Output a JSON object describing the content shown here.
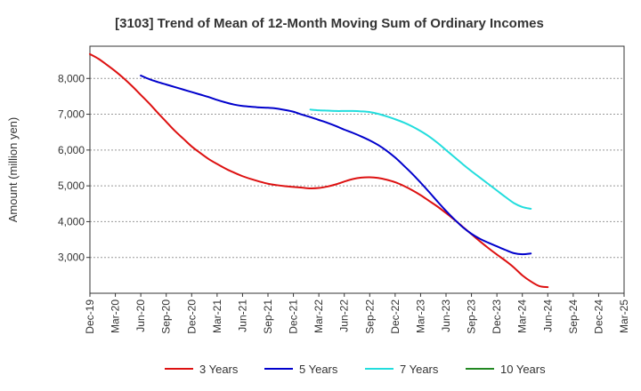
{
  "chart_data": {
    "type": "line",
    "title": "[3103]  Trend of Mean of 12-Month Moving Sum of Ordinary Incomes",
    "xlabel": "",
    "ylabel": "Amount (million yen)",
    "x_ticks": [
      "Dec-19",
      "Mar-20",
      "Jun-20",
      "Sep-20",
      "Dec-20",
      "Mar-21",
      "Jun-21",
      "Sep-21",
      "Dec-21",
      "Mar-22",
      "Jun-22",
      "Sep-22",
      "Dec-22",
      "Mar-23",
      "Jun-23",
      "Sep-23",
      "Dec-23",
      "Mar-24",
      "Jun-24",
      "Sep-24",
      "Dec-24",
      "Mar-25"
    ],
    "y_ticks": [
      3000,
      4000,
      5000,
      6000,
      7000,
      8000
    ],
    "y_tick_labels": [
      "3,000",
      "4,000",
      "5,000",
      "6,000",
      "7,000",
      "8,000"
    ],
    "ylim": [
      2000,
      8900
    ],
    "grid": "horizontal dotted",
    "legend_position": "bottom",
    "series": [
      {
        "name": "3 Years",
        "color": "#dd1111",
        "start_index": 0,
        "values": [
          8680,
          8550,
          8380,
          8200,
          8000,
          7780,
          7540,
          7300,
          7040,
          6790,
          6540,
          6320,
          6100,
          5920,
          5750,
          5610,
          5480,
          5370,
          5270,
          5190,
          5120,
          5060,
          5020,
          4990,
          4970,
          4950,
          4930,
          4940,
          4980,
          5040,
          5120,
          5190,
          5230,
          5240,
          5220,
          5170,
          5100,
          5000,
          4880,
          4740,
          4580,
          4420,
          4240,
          4050,
          3850,
          3650,
          3450,
          3260,
          3080,
          2910,
          2720,
          2500,
          2330,
          2200,
          2170
        ]
      },
      {
        "name": "5 Years",
        "color": "#0000cc",
        "start_index": 6,
        "values": [
          8080,
          7980,
          7900,
          7830,
          7760,
          7690,
          7620,
          7550,
          7480,
          7400,
          7330,
          7270,
          7230,
          7210,
          7190,
          7180,
          7160,
          7120,
          7070,
          6990,
          6920,
          6840,
          6760,
          6670,
          6570,
          6480,
          6380,
          6270,
          6140,
          5980,
          5790,
          5570,
          5340,
          5090,
          4830,
          4560,
          4300,
          4060,
          3840,
          3660,
          3520,
          3410,
          3310,
          3210,
          3120,
          3090,
          3110
        ]
      },
      {
        "name": "7 Years",
        "color": "#22dddd",
        "start_index": 26,
        "values": [
          7130,
          7110,
          7100,
          7090,
          7090,
          7090,
          7080,
          7060,
          7010,
          6940,
          6860,
          6770,
          6660,
          6530,
          6380,
          6200,
          6000,
          5800,
          5600,
          5410,
          5230,
          5050,
          4870,
          4690,
          4520,
          4410,
          4360
        ]
      },
      {
        "name": "10 Years",
        "color": "#228822",
        "start_index": 0,
        "values": []
      }
    ]
  }
}
